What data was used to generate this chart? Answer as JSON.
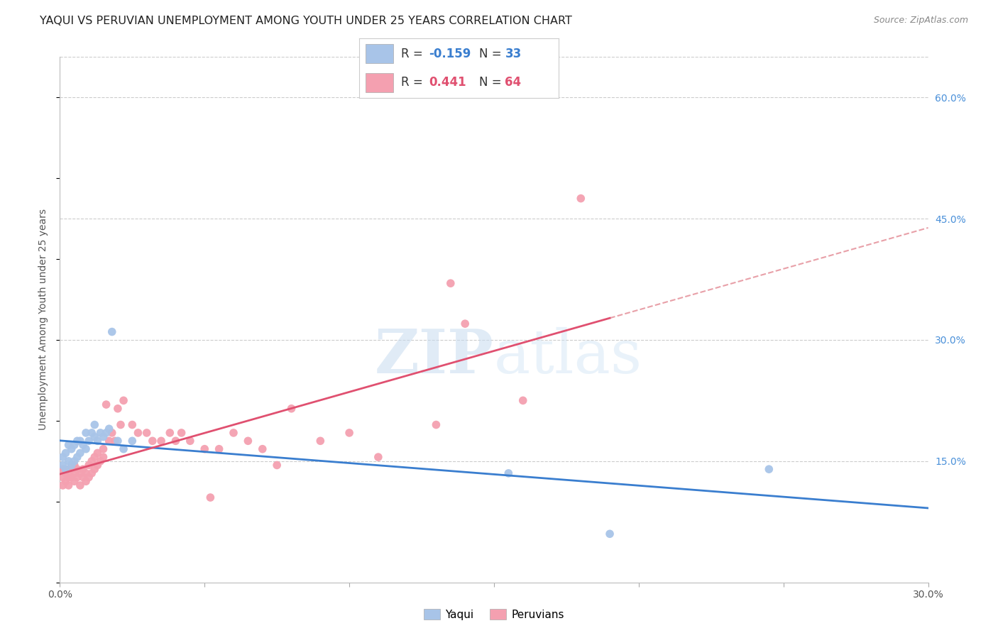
{
  "title": "YAQUI VS PERUVIAN UNEMPLOYMENT AMONG YOUTH UNDER 25 YEARS CORRELATION CHART",
  "source": "Source: ZipAtlas.com",
  "ylabel": "Unemployment Among Youth under 25 years",
  "xlim": [
    0.0,
    0.3
  ],
  "ylim": [
    0.0,
    0.65
  ],
  "x_ticks": [
    0.0,
    0.05,
    0.1,
    0.15,
    0.2,
    0.25,
    0.3
  ],
  "y_ticks_right": [
    0.0,
    0.15,
    0.3,
    0.45,
    0.6
  ],
  "y_tick_labels_right": [
    "",
    "15.0%",
    "30.0%",
    "45.0%",
    "60.0%"
  ],
  "yaqui_color": "#a8c4e8",
  "peruvian_color": "#f4a0b0",
  "yaqui_line_color": "#3a7ecf",
  "peruvian_line_color": "#e05070",
  "peruvian_dashed_color": "#e8a0a8",
  "background_color": "#ffffff",
  "grid_color": "#cccccc",
  "yaqui_x": [
    0.001,
    0.001,
    0.002,
    0.002,
    0.003,
    0.003,
    0.004,
    0.004,
    0.005,
    0.005,
    0.006,
    0.006,
    0.007,
    0.007,
    0.008,
    0.009,
    0.009,
    0.01,
    0.011,
    0.012,
    0.012,
    0.013,
    0.014,
    0.015,
    0.016,
    0.017,
    0.018,
    0.02,
    0.022,
    0.025,
    0.155,
    0.19,
    0.245
  ],
  "yaqui_y": [
    0.145,
    0.155,
    0.14,
    0.16,
    0.15,
    0.17,
    0.145,
    0.165,
    0.15,
    0.17,
    0.155,
    0.175,
    0.16,
    0.175,
    0.17,
    0.165,
    0.185,
    0.175,
    0.185,
    0.195,
    0.18,
    0.175,
    0.185,
    0.18,
    0.185,
    0.19,
    0.31,
    0.175,
    0.165,
    0.175,
    0.135,
    0.06,
    0.14
  ],
  "peruvian_x": [
    0.001,
    0.001,
    0.002,
    0.002,
    0.003,
    0.003,
    0.003,
    0.004,
    0.004,
    0.005,
    0.005,
    0.005,
    0.006,
    0.006,
    0.007,
    0.007,
    0.008,
    0.008,
    0.009,
    0.009,
    0.01,
    0.01,
    0.011,
    0.011,
    0.012,
    0.012,
    0.013,
    0.013,
    0.014,
    0.015,
    0.015,
    0.016,
    0.017,
    0.018,
    0.019,
    0.02,
    0.021,
    0.022,
    0.025,
    0.027,
    0.03,
    0.032,
    0.035,
    0.038,
    0.04,
    0.042,
    0.045,
    0.05,
    0.052,
    0.055,
    0.06,
    0.065,
    0.07,
    0.075,
    0.08,
    0.09,
    0.1,
    0.11,
    0.13,
    0.135,
    0.14,
    0.16,
    0.18,
    0.001
  ],
  "peruvian_y": [
    0.13,
    0.14,
    0.125,
    0.135,
    0.12,
    0.14,
    0.13,
    0.13,
    0.14,
    0.125,
    0.135,
    0.145,
    0.13,
    0.14,
    0.12,
    0.135,
    0.13,
    0.14,
    0.125,
    0.135,
    0.13,
    0.145,
    0.135,
    0.15,
    0.14,
    0.155,
    0.145,
    0.16,
    0.15,
    0.165,
    0.155,
    0.22,
    0.175,
    0.185,
    0.175,
    0.215,
    0.195,
    0.225,
    0.195,
    0.185,
    0.185,
    0.175,
    0.175,
    0.185,
    0.175,
    0.185,
    0.175,
    0.165,
    0.105,
    0.165,
    0.185,
    0.175,
    0.165,
    0.145,
    0.215,
    0.175,
    0.185,
    0.155,
    0.195,
    0.37,
    0.32,
    0.225,
    0.475,
    0.12
  ],
  "marker_size": 70,
  "title_fontsize": 11.5,
  "tick_fontsize": 10,
  "ylabel_fontsize": 10,
  "legend_fontsize": 12,
  "source_fontsize": 9
}
